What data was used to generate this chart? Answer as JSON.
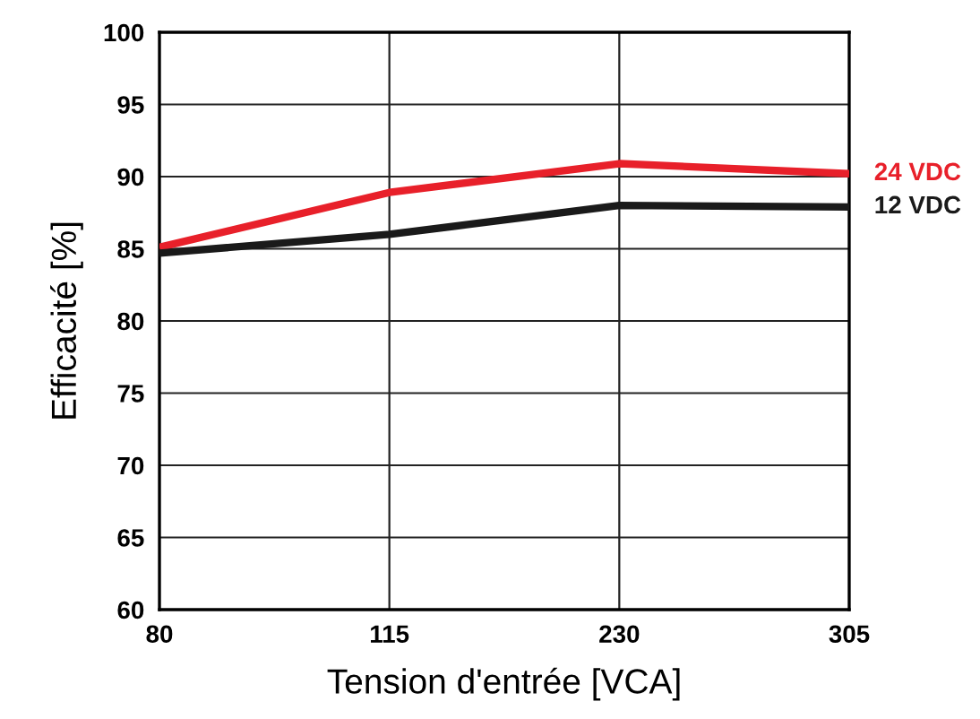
{
  "chart_data": {
    "type": "line",
    "xlabel": "Tension d'entrée [VCA]",
    "ylabel": "Efficacité [%]",
    "categories": [
      "80",
      "115",
      "230",
      "305"
    ],
    "series": [
      {
        "name": "24 VDC",
        "color": "#e8202a",
        "values": [
          85.1,
          88.9,
          90.9,
          90.2
        ]
      },
      {
        "name": "12 VDC",
        "color": "#1a1a1a",
        "values": [
          84.7,
          86.0,
          88.0,
          87.9
        ]
      }
    ],
    "ylim": [
      60,
      100
    ],
    "yticks": [
      60,
      65,
      70,
      75,
      80,
      85,
      90,
      95,
      100
    ],
    "grid": true,
    "legend": false,
    "marker": "none",
    "line_style": "solid"
  }
}
